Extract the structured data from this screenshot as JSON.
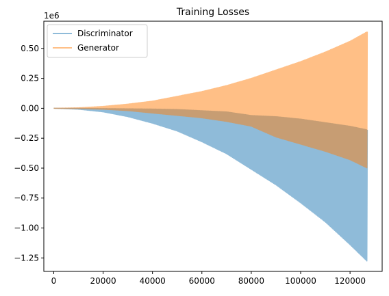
{
  "chart_data": {
    "type": "area",
    "title": "Training Losses",
    "xlabel": "",
    "ylabel": "",
    "y_offset_label": "1e6",
    "xlim": [
      -4000,
      133000
    ],
    "ylim": [
      -1.3625,
      0.7275
    ],
    "x_ticks": [
      0,
      20000,
      40000,
      60000,
      80000,
      100000,
      120000
    ],
    "x_tick_labels": [
      "0",
      "20000",
      "40000",
      "60000",
      "80000",
      "100000",
      "120000"
    ],
    "y_ticks": [
      0.5,
      0.25,
      0.0,
      -0.25,
      -0.5,
      -0.75,
      -1.0,
      -1.25
    ],
    "y_tick_labels": [
      "0.50",
      "0.25",
      "0.00",
      "−0.25",
      "−0.50",
      "−0.75",
      "−1.00",
      "−1.25"
    ],
    "legend_placement": "top-left",
    "grid": false,
    "series": [
      {
        "name": "Discriminator",
        "color": "#1f77b4",
        "alpha": 0.5,
        "x": [
          0,
          10000,
          20000,
          30000,
          40000,
          50000,
          60000,
          70000,
          80000,
          90000,
          100000,
          110000,
          120000,
          127000
        ],
        "upper": [
          0,
          0.0,
          -0.002,
          -0.004,
          -0.006,
          -0.01,
          -0.02,
          -0.03,
          -0.06,
          -0.07,
          -0.09,
          -0.12,
          -0.15,
          -0.18
        ],
        "lower": [
          0,
          -0.008,
          -0.03,
          -0.07,
          -0.125,
          -0.19,
          -0.28,
          -0.38,
          -0.51,
          -0.64,
          -0.79,
          -0.95,
          -1.14,
          -1.28
        ]
      },
      {
        "name": "Generator",
        "color": "#ff7f0e",
        "alpha": 0.5,
        "x": [
          0,
          10000,
          20000,
          30000,
          40000,
          50000,
          60000,
          70000,
          80000,
          90000,
          100000,
          110000,
          120000,
          127000
        ],
        "upper": [
          0,
          0.004,
          0.016,
          0.035,
          0.06,
          0.1,
          0.14,
          0.19,
          0.25,
          0.32,
          0.39,
          0.47,
          0.56,
          0.64
        ],
        "lower": [
          0,
          -0.003,
          -0.008,
          -0.02,
          -0.04,
          -0.06,
          -0.08,
          -0.11,
          -0.15,
          -0.24,
          -0.3,
          -0.36,
          -0.43,
          -0.5
        ]
      }
    ]
  }
}
